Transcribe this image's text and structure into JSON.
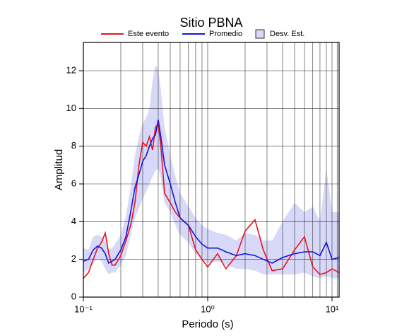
{
  "chart_data": {
    "type": "line",
    "title": "Sitio PBNA",
    "xlabel": "Periodo (s)",
    "ylabel": "Amplitud",
    "log_x": true,
    "grid": true,
    "xlim": [
      0.1,
      11.4
    ],
    "ylim": [
      0,
      13.5
    ],
    "xticks": [
      {
        "value": 0.1,
        "label": "10⁻¹"
      },
      {
        "value": 1,
        "label": "10⁰"
      },
      {
        "value": 10,
        "label": "10¹"
      }
    ],
    "xminor": [
      0.2,
      0.3,
      0.4,
      0.5,
      0.6,
      0.7,
      0.8,
      0.9,
      2,
      3,
      4,
      5,
      6,
      7,
      8,
      9,
      11
    ],
    "yticks": [
      0,
      2,
      4,
      6,
      8,
      10,
      12
    ],
    "x": [
      0.1,
      0.11,
      0.12,
      0.13,
      0.14,
      0.15,
      0.16,
      0.17,
      0.18,
      0.2,
      0.22,
      0.24,
      0.26,
      0.28,
      0.3,
      0.32,
      0.34,
      0.36,
      0.38,
      0.4,
      0.42,
      0.45,
      0.5,
      0.55,
      0.6,
      0.7,
      0.8,
      0.9,
      1.0,
      1.2,
      1.4,
      1.7,
      2.0,
      2.4,
      2.8,
      3.3,
      4.0,
      5.0,
      6.0,
      7.0,
      8.0,
      9.0,
      10,
      11.4
    ],
    "band": {
      "name": "Desv. Est.",
      "color": "#d8d8f8",
      "upper": [
        2.6,
        2.5,
        3.2,
        3.3,
        3.2,
        3.0,
        2.5,
        2.6,
        2.8,
        3.3,
        4.3,
        5.8,
        7.5,
        8.5,
        9.2,
        9.5,
        10.0,
        11.5,
        12.3,
        12.1,
        11.0,
        9.0,
        7.5,
        6.4,
        5.5,
        4.8,
        4.2,
        3.8,
        3.6,
        3.4,
        3.3,
        3.0,
        3.4,
        3.3,
        3.0,
        3.0,
        4.0,
        5.0,
        4.5,
        4.8,
        4.0,
        6.8,
        4.5,
        4.5
      ],
      "lower": [
        1.3,
        1.5,
        1.8,
        2.0,
        1.9,
        1.5,
        1.2,
        1.3,
        1.3,
        1.7,
        2.2,
        3.3,
        4.2,
        4.7,
        5.2,
        5.6,
        6.0,
        6.4,
        6.7,
        6.8,
        6.3,
        5.0,
        4.5,
        3.8,
        3.3,
        2.9,
        2.3,
        2.0,
        1.8,
        1.9,
        1.7,
        1.5,
        1.5,
        1.4,
        1.2,
        1.2,
        1.2,
        1.2,
        1.3,
        1.1,
        1.0,
        1.1,
        1.0,
        1.0
      ]
    },
    "series": [
      {
        "name": "Este evento",
        "color": "#e8141c",
        "values": [
          1.0,
          1.3,
          2.0,
          2.6,
          2.9,
          3.4,
          2.3,
          1.7,
          1.7,
          2.2,
          3.0,
          3.8,
          5.0,
          7.0,
          8.2,
          8.0,
          8.5,
          7.8,
          9.0,
          9.2,
          8.0,
          5.5,
          5.0,
          4.5,
          4.2,
          3.8,
          2.5,
          2.0,
          1.6,
          2.3,
          1.5,
          2.2,
          3.5,
          4.1,
          2.5,
          1.4,
          1.5,
          2.5,
          3.2,
          1.6,
          1.2,
          1.3,
          1.5,
          1.3
        ]
      },
      {
        "name": "Promedio",
        "color": "#1414e0",
        "values": [
          1.9,
          2.0,
          2.5,
          2.7,
          2.6,
          2.3,
          1.8,
          1.9,
          2.0,
          2.5,
          3.2,
          4.5,
          5.8,
          6.5,
          7.2,
          7.5,
          8.0,
          8.4,
          8.6,
          9.4,
          8.5,
          7.0,
          6.0,
          5.0,
          4.2,
          3.8,
          3.2,
          2.8,
          2.6,
          2.6,
          2.4,
          2.2,
          2.3,
          2.2,
          2.0,
          1.8,
          2.1,
          2.3,
          2.4,
          2.4,
          2.2,
          2.9,
          2.0,
          2.1
        ]
      }
    ]
  }
}
